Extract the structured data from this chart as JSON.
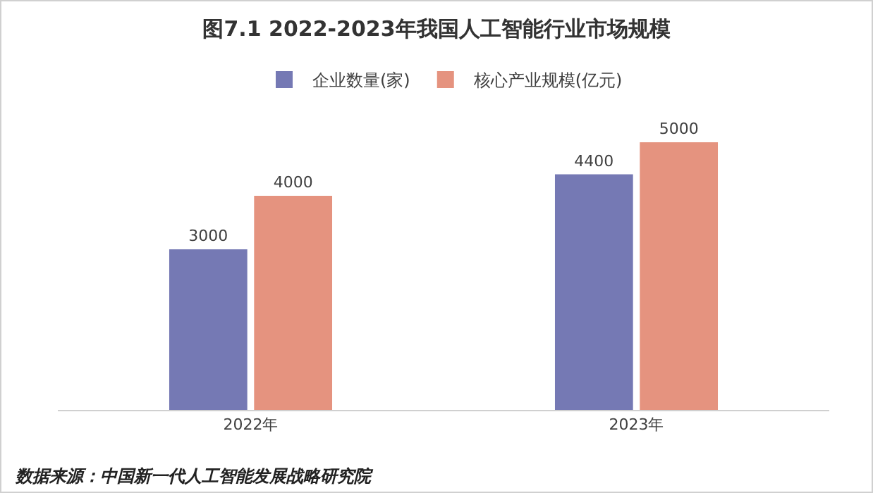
{
  "chart_data": {
    "type": "bar",
    "title": "图7.1 2022-2023年我国人工智能行业市场规模",
    "categories": [
      "2022年",
      "2023年"
    ],
    "series": [
      {
        "name": "企业数量(家)",
        "color": "#7579b4",
        "values": [
          3000,
          4400
        ]
      },
      {
        "name": "核心产业规模(亿元)",
        "color": "#e5937f",
        "values": [
          4000,
          5000
        ]
      }
    ],
    "data_labels": true,
    "grid": false,
    "legend": "top",
    "annotations": [
      "数据来源：中国新一代人工智能发展战略研究院"
    ]
  }
}
